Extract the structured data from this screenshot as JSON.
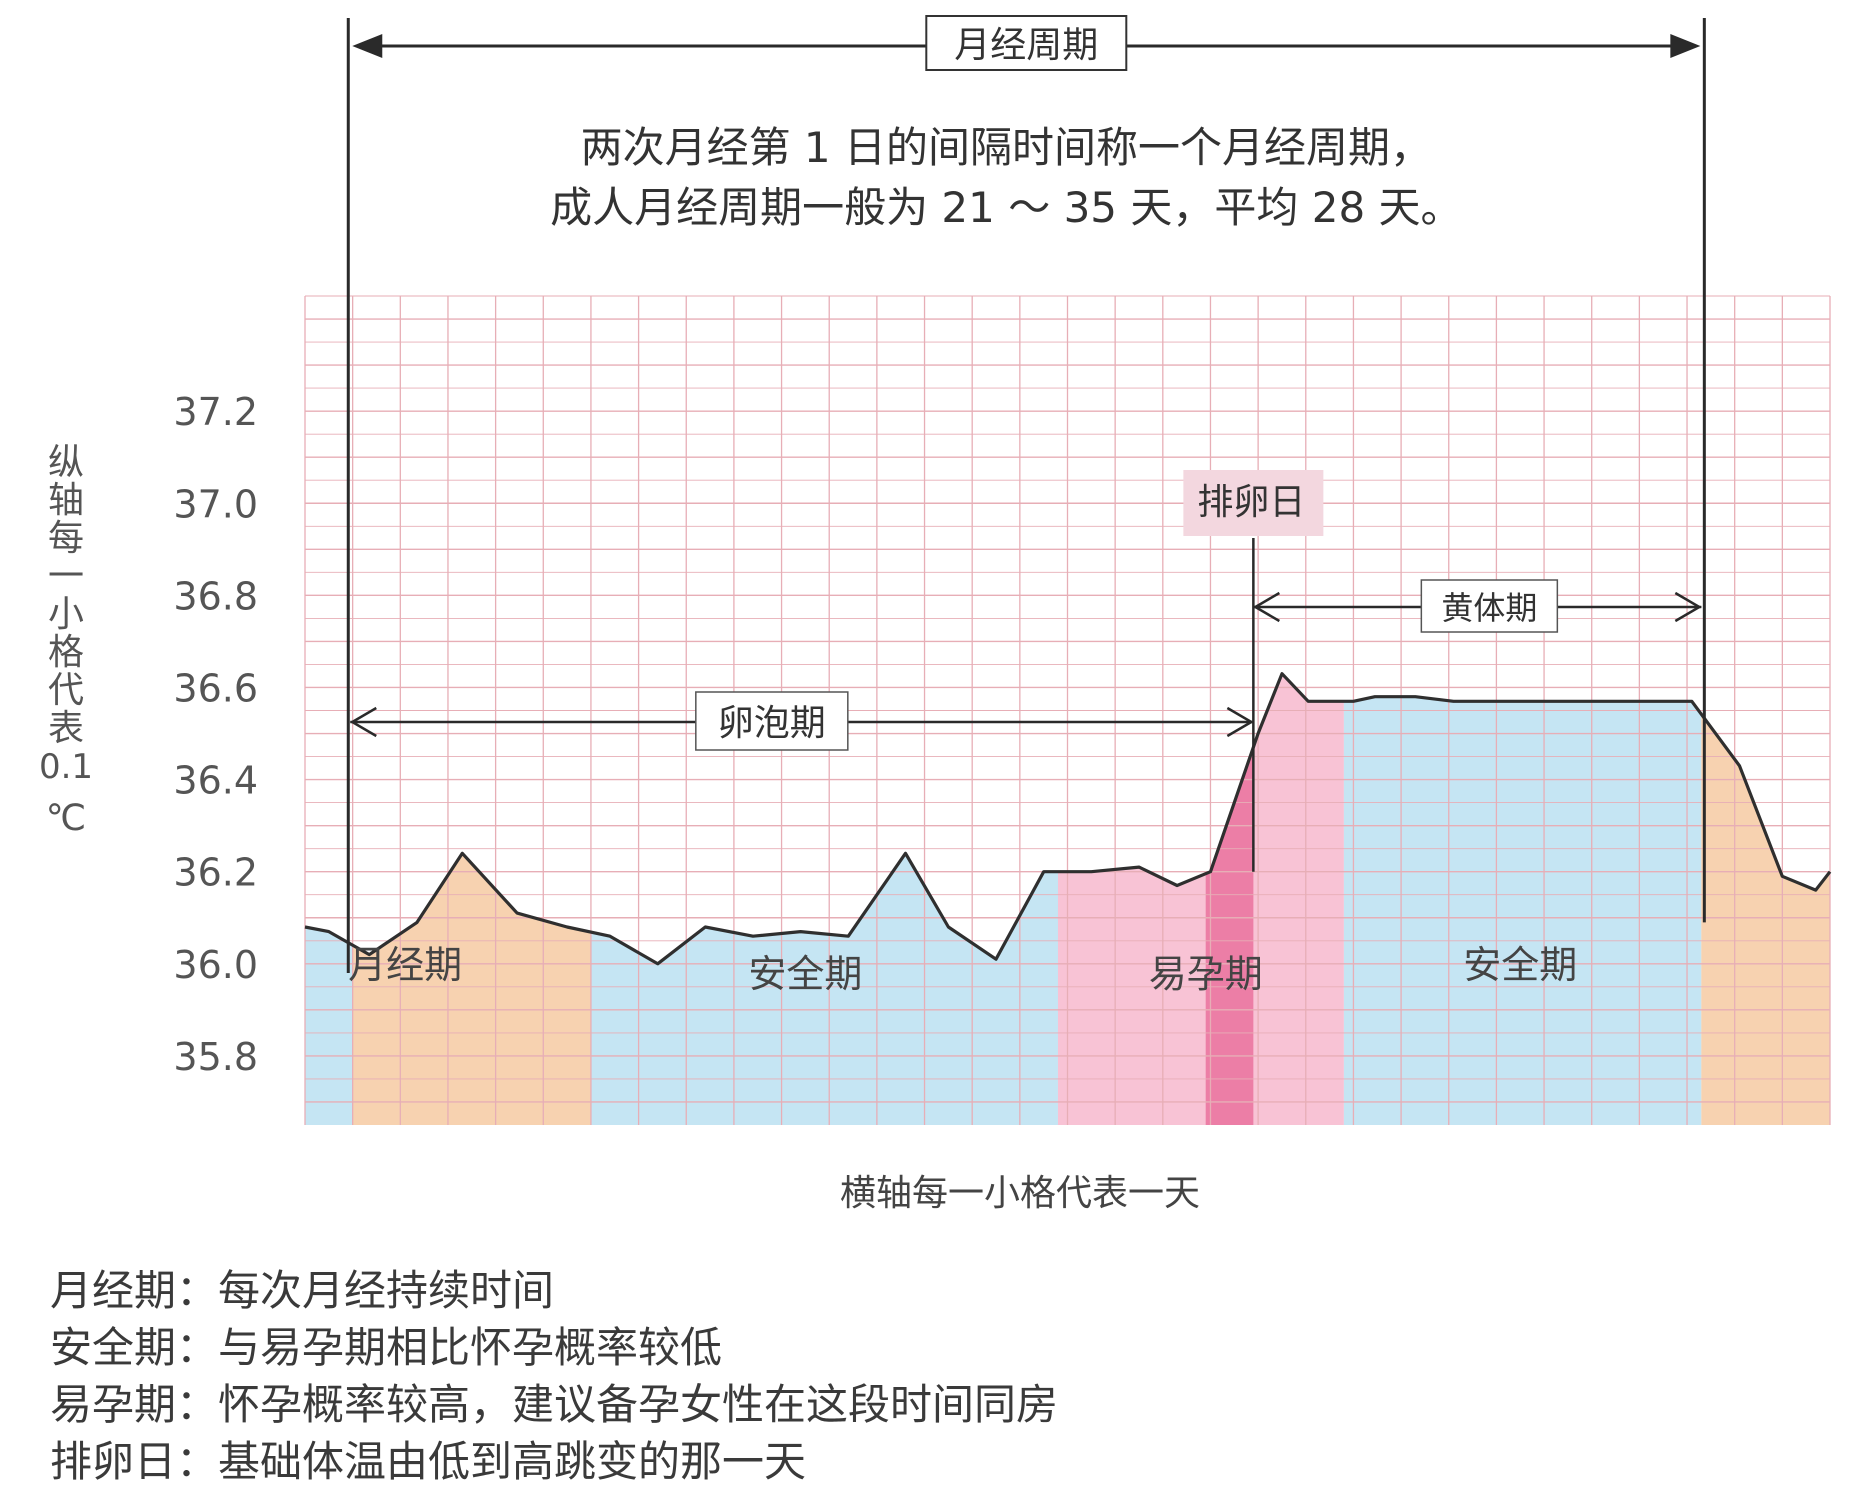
{
  "chart_data": {
    "type": "line",
    "y_ticks": [
      "37.2",
      "37.0",
      "36.8",
      "36.6",
      "36.4",
      "36.2",
      "36.0",
      "35.8"
    ],
    "ylim": [
      35.65,
      37.45
    ],
    "y_axis_label": [
      "纵",
      "轴",
      "每",
      "一",
      "小",
      "格",
      "代",
      "表",
      "0.1",
      "℃"
    ],
    "x_axis_label": "横轴每一小格代表一天",
    "x_range_days": [
      0,
      32
    ],
    "series": [
      {
        "x": [
          0,
          0.5,
          1.35,
          2.35,
          3.3,
          4.45,
          5.5,
          6.4,
          7.4,
          8.4,
          9.4,
          10.4,
          11.4,
          12.6,
          13.5,
          14.5,
          15.5,
          16.5,
          17.5,
          18.3,
          19.0,
          20.0,
          20.5,
          21.05,
          22.0,
          22.45,
          23.3,
          24.1,
          25.1,
          26.1,
          27.1,
          28.1,
          29.1,
          30.1,
          31.0,
          31.7,
          32.0
        ],
        "y": [
          36.08,
          36.07,
          36.02,
          36.09,
          36.24,
          36.11,
          36.08,
          36.06,
          36.0,
          36.08,
          36.06,
          36.07,
          36.06,
          36.24,
          36.08,
          36.01,
          36.2,
          36.2,
          36.21,
          36.17,
          36.2,
          36.5,
          36.63,
          36.57,
          36.57,
          36.58,
          36.58,
          36.57,
          36.57,
          36.57,
          36.57,
          36.57,
          36.57,
          36.43,
          36.19,
          36.16,
          36.2
        ]
      }
    ],
    "zones": [
      {
        "label": "",
        "from": 0,
        "to": 1.0,
        "color": "#bfe2f2"
      },
      {
        "label": "月经期",
        "from": 1.0,
        "to": 6.0,
        "color": "#f6cda7"
      },
      {
        "label": "安全期",
        "from": 6.0,
        "to": 15.8,
        "color": "#bfe2f2"
      },
      {
        "label": "易孕期",
        "from": 15.8,
        "to": 21.8,
        "color": "#f7bdd0"
      },
      {
        "label": "安全期",
        "from": 21.8,
        "to": 29.3,
        "color": "#bfe2f2"
      },
      {
        "label": "",
        "from": 29.3,
        "to": 32.0,
        "color": "#f6cda7"
      }
    ],
    "ovulation_band": {
      "from": 18.9,
      "to": 19.9,
      "color": "#ec7ea6"
    },
    "annotations": {
      "cycle": {
        "label": "月经周期",
        "from_day": 0.95,
        "to_day": 29.3
      },
      "note_lines": [
        "两次月经第 1 日的间隔时间称一个月经周期，",
        "成人月经周期一般为 21 ～ 35 天，平均 28 天。"
      ],
      "follicular": {
        "label": "卵泡期",
        "from_day": 0.95,
        "to_day": 19.9
      },
      "luteal": {
        "label": "黄体期",
        "from_day": 19.9,
        "to_day": 29.3
      },
      "ovulation": {
        "label": "排卵日",
        "day": 19.9
      }
    }
  },
  "notes": [
    {
      "term": "月经期",
      "sep": "：",
      "desc": "每次月经持续时间"
    },
    {
      "term": "安全期",
      "sep": "：",
      "desc": "与易孕期相比怀孕概率较低"
    },
    {
      "term": "易孕期",
      "sep": "：",
      "desc": "怀孕概率较高，建议备孕女性在这段时间同房"
    },
    {
      "term": "排卵日",
      "sep": "：",
      "desc": "基础体温由低到高跳变的那一天"
    }
  ],
  "colors": {
    "grid": "#e7aeb6",
    "line": "#2f2f2f",
    "text": "#333333"
  }
}
